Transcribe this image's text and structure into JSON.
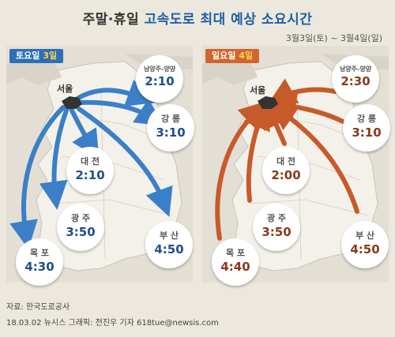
{
  "title_part1": "주말·휴일 ",
  "title_part2": "고속도로 최대 예상 소요시간",
  "date_range": "3월3일(토) ~ 3월4일(일)",
  "saturday": {
    "label": "토요일",
    "day": "3일",
    "color": "#2c6fb5",
    "origin": "서울",
    "destinations": [
      {
        "name": "남양주-양양",
        "time": "2:10"
      },
      {
        "name": "강 릉",
        "time": "3:10"
      },
      {
        "name": "대 전",
        "time": "2:10"
      },
      {
        "name": "광 주",
        "time": "3:50"
      },
      {
        "name": "부 산",
        "time": "4:50"
      },
      {
        "name": "목 포",
        "time": "4:30"
      }
    ]
  },
  "sunday": {
    "label": "일요일",
    "day": "4일",
    "color": "#d1652e",
    "origin": "서울",
    "destinations": [
      {
        "name": "남양주-양양",
        "time": "2:30"
      },
      {
        "name": "강 릉",
        "time": "3:10"
      },
      {
        "name": "대 전",
        "time": "2:00"
      },
      {
        "name": "광 주",
        "time": "3:50"
      },
      {
        "name": "부 산",
        "time": "4:50"
      },
      {
        "name": "목 포",
        "time": "4:40"
      }
    ]
  },
  "source": "자료: 한국도로공사",
  "credit": "18.03.02 뉴시스 그래픽: 전진우 기자 618tue@newsis.com"
}
